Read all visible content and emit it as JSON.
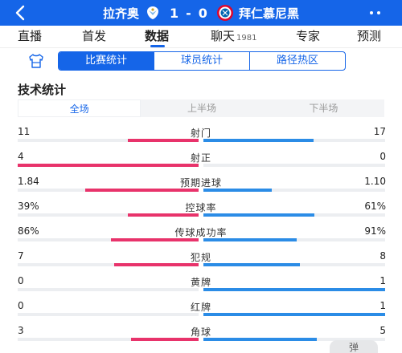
{
  "header": {
    "home_team": "拉齐奥",
    "away_team": "拜仁慕尼黑",
    "home_score": "1",
    "separator": "-",
    "away_score": "0",
    "brand_color": "#1565e8"
  },
  "tabs": [
    {
      "label": "直播",
      "count": ""
    },
    {
      "label": "首发",
      "count": ""
    },
    {
      "label": "数据",
      "count": "",
      "active": true
    },
    {
      "label": "聊天",
      "count": "1981"
    },
    {
      "label": "专家",
      "count": ""
    },
    {
      "label": "预测",
      "count": ""
    }
  ],
  "sub_tabs": [
    {
      "label": "比赛统计",
      "active": true
    },
    {
      "label": "球员统计"
    },
    {
      "label": "路径热区"
    }
  ],
  "section_title": "技术统计",
  "period_tabs": [
    {
      "label": "全场",
      "active": true
    },
    {
      "label": "上半场"
    },
    {
      "label": "下半场"
    }
  ],
  "stats": [
    {
      "label": "射门",
      "home": "11",
      "away": "17",
      "home_ratio": 0.393,
      "away_ratio": 0.607
    },
    {
      "label": "射正",
      "home": "4",
      "away": "0",
      "home_ratio": 1.0,
      "away_ratio": 0.0
    },
    {
      "label": "预期进球",
      "home": "1.84",
      "away": "1.10",
      "home_ratio": 0.626,
      "away_ratio": 0.374
    },
    {
      "label": "控球率",
      "home": "39%",
      "away": "61%",
      "home_ratio": 0.39,
      "away_ratio": 0.61
    },
    {
      "label": "传球成功率",
      "home": "86%",
      "away": "91%",
      "home_ratio": 0.486,
      "away_ratio": 0.514
    },
    {
      "label": "犯规",
      "home": "7",
      "away": "8",
      "home_ratio": 0.467,
      "away_ratio": 0.533
    },
    {
      "label": "黄牌",
      "home": "0",
      "away": "1",
      "home_ratio": 0.0,
      "away_ratio": 1.0
    },
    {
      "label": "红牌",
      "home": "0",
      "away": "1",
      "home_ratio": 0.0,
      "away_ratio": 1.0
    },
    {
      "label": "角球",
      "home": "3",
      "away": "5",
      "home_ratio": 0.375,
      "away_ratio": 0.625
    }
  ],
  "colors": {
    "home_bar": "#e8336b",
    "away_bar": "#2b8ce6",
    "track": "#eceef1"
  },
  "float_button": "弹"
}
